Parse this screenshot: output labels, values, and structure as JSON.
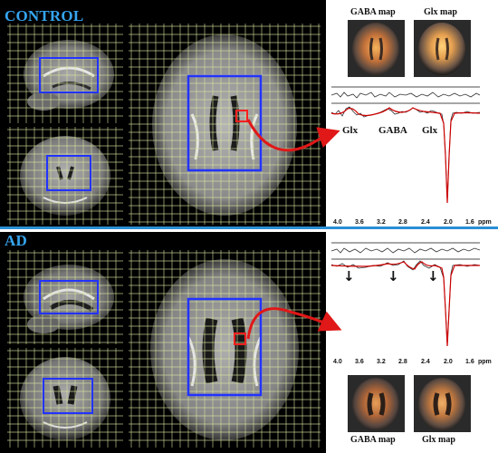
{
  "sections": {
    "control": {
      "label": "CONTROL"
    },
    "ad": {
      "label": "AD"
    }
  },
  "maps": {
    "control": {
      "gaba_title": "GABA map",
      "glx_title": "Glx map"
    },
    "ad": {
      "gaba_title": "GABA map",
      "glx_title": "Glx map"
    }
  },
  "spectrum": {
    "control_peaks": [
      "Glx",
      "GABA",
      "Glx"
    ],
    "axis_ticks": [
      "4.0",
      "3.6",
      "3.2",
      "2.8",
      "2.4",
      "2.0",
      "1.6"
    ],
    "axis_unit": "ppm"
  },
  "colors": {
    "section_label": "#35a5f0",
    "divider": "#2b8fd6",
    "grid": "#d8e6a0",
    "voi_box": "#2233ff",
    "voxel_marker": "#ff2020",
    "arrow": "#e01818",
    "fit_line": "#cc0000"
  },
  "icons": {
    "ad_markers": [
      "down-arrow-icon",
      "down-arrow-icon",
      "down-arrow-icon"
    ]
  }
}
